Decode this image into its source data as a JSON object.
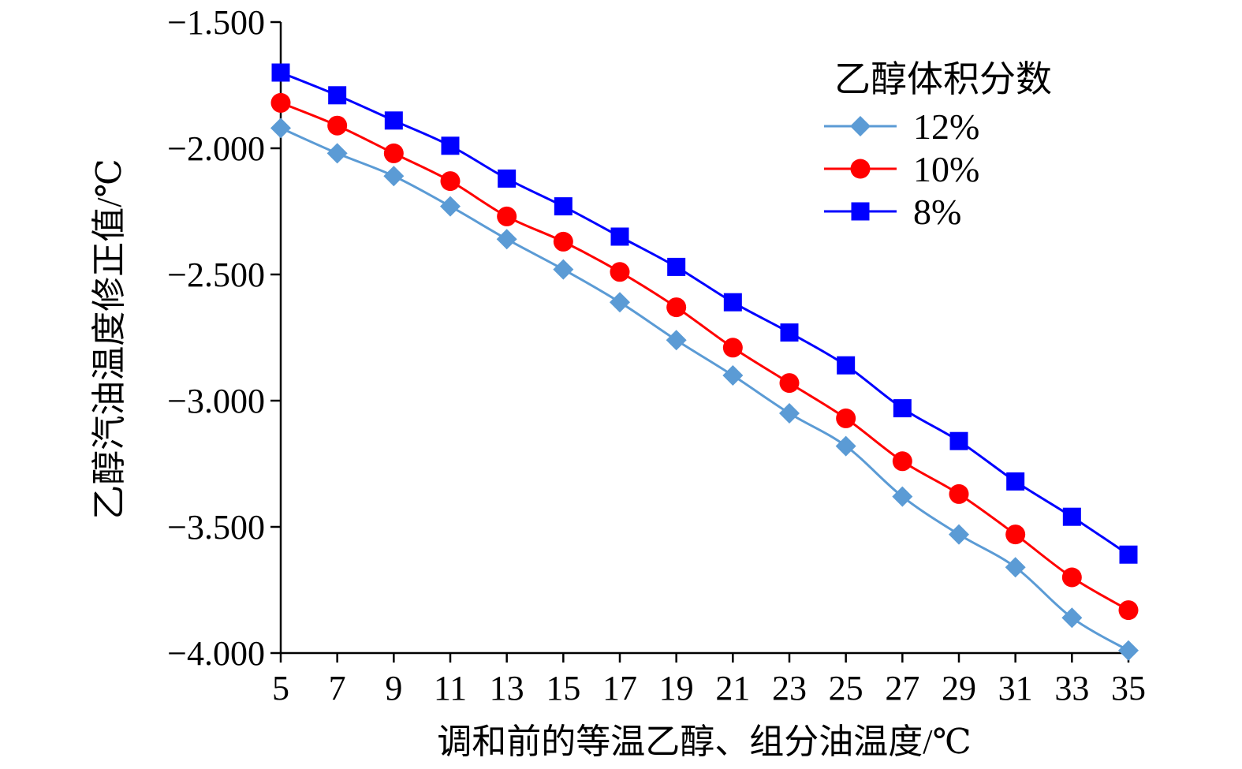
{
  "chart_data": {
    "type": "line",
    "xlabel": "调和前的等温乙醇、组分油温度/℃",
    "ylabel": "乙醇汽油温度修正值/℃",
    "x": [
      5,
      7,
      9,
      11,
      13,
      15,
      17,
      19,
      21,
      23,
      25,
      27,
      29,
      31,
      33,
      35
    ],
    "x_tick_labels": [
      "5",
      "7",
      "9",
      "11",
      "13",
      "15",
      "17",
      "19",
      "21",
      "23",
      "25",
      "27",
      "29",
      "31",
      "33",
      "35"
    ],
    "ylim": [
      -4.0,
      -1.5
    ],
    "y_ticks": [
      -1.5,
      -2.0,
      -2.5,
      -3.0,
      -3.5,
      -4.0
    ],
    "y_tick_labels": [
      "−1.500",
      "−2.000",
      "−2.500",
      "−3.000",
      "−3.500",
      "−4.000"
    ],
    "grid": false,
    "legend": {
      "title": "乙醇体积分数",
      "position": "top-right"
    },
    "series": [
      {
        "name": "12%",
        "color": "#5b9bd5",
        "marker": "diamond",
        "values": [
          -1.92,
          -2.02,
          -2.11,
          -2.23,
          -2.36,
          -2.48,
          -2.61,
          -2.76,
          -2.9,
          -3.05,
          -3.18,
          -3.38,
          -3.53,
          -3.66,
          -3.86,
          -3.99
        ]
      },
      {
        "name": "10%",
        "color": "#ff0000",
        "marker": "circle",
        "values": [
          -1.82,
          -1.91,
          -2.02,
          -2.13,
          -2.27,
          -2.37,
          -2.49,
          -2.63,
          -2.79,
          -2.93,
          -3.07,
          -3.24,
          -3.37,
          -3.53,
          -3.7,
          -3.83
        ]
      },
      {
        "name": "8%",
        "color": "#0000ff",
        "marker": "square",
        "values": [
          -1.7,
          -1.79,
          -1.89,
          -1.99,
          -2.12,
          -2.23,
          -2.35,
          -2.47,
          -2.61,
          -2.73,
          -2.86,
          -3.03,
          -3.16,
          -3.32,
          -3.46,
          -3.61
        ]
      }
    ]
  }
}
